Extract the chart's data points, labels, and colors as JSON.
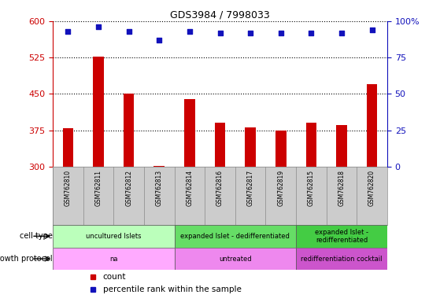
{
  "title": "GDS3984 / 7998033",
  "samples": [
    "GSM762810",
    "GSM762811",
    "GSM762812",
    "GSM762813",
    "GSM762814",
    "GSM762816",
    "GSM762817",
    "GSM762819",
    "GSM762815",
    "GSM762818",
    "GSM762820"
  ],
  "counts": [
    380,
    527,
    450,
    302,
    440,
    390,
    381,
    375,
    390,
    385,
    470
  ],
  "percentile_ranks": [
    93,
    96,
    93,
    87,
    93,
    92,
    92,
    92,
    92,
    92,
    94
  ],
  "ylim_left": [
    300,
    600
  ],
  "ylim_right": [
    0,
    100
  ],
  "yticks_left": [
    300,
    375,
    450,
    525,
    600
  ],
  "yticks_right": [
    0,
    25,
    50,
    75,
    100
  ],
  "ytick_right_labels": [
    "0",
    "25",
    "50",
    "75",
    "100%"
  ],
  "bar_color": "#cc0000",
  "dot_color": "#1111bb",
  "cell_type_groups": [
    {
      "label": "uncultured Islets",
      "start": 0,
      "end": 4,
      "color": "#bbffbb"
    },
    {
      "label": "expanded Islet - dedifferentiated",
      "start": 4,
      "end": 8,
      "color": "#66dd66"
    },
    {
      "label": "expanded Islet -\nredifferentiated",
      "start": 8,
      "end": 11,
      "color": "#44cc44"
    }
  ],
  "growth_protocol_groups": [
    {
      "label": "na",
      "start": 0,
      "end": 4,
      "color": "#ffaaff"
    },
    {
      "label": "untreated",
      "start": 4,
      "end": 8,
      "color": "#ee88ee"
    },
    {
      "label": "redifferentiation cocktail",
      "start": 8,
      "end": 11,
      "color": "#cc55cc"
    }
  ],
  "cell_type_label": "cell type",
  "growth_protocol_label": "growth protocol",
  "legend_count_label": "count",
  "legend_percentile_label": "percentile rank within the sample",
  "bar_width": 0.35,
  "dot_size": 22,
  "tick_color_left": "#cc0000",
  "tick_color_right": "#1111bb",
  "sample_area_color": "#cccccc",
  "background_color": "#ffffff"
}
